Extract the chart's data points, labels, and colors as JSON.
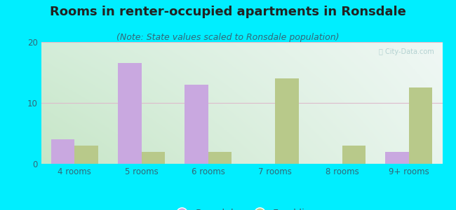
{
  "title": "Rooms in renter-occupied apartments in Ronsdale",
  "subtitle": "(Note: State values scaled to Ronsdale population)",
  "categories": [
    "4 rooms",
    "5 rooms",
    "6 rooms",
    "7 rooms",
    "8 rooms",
    "9+ rooms"
  ],
  "ronsdale_values": [
    4.0,
    16.5,
    13.0,
    0,
    0,
    2.0
  ],
  "franklin_values": [
    3.0,
    2.0,
    2.0,
    14.0,
    3.0,
    12.5
  ],
  "ronsdale_color": "#c9a8e0",
  "franklin_color": "#b8c98a",
  "bar_width": 0.35,
  "ylim": [
    0,
    20
  ],
  "yticks": [
    0,
    10,
    20
  ],
  "bg_outer": "#00eeff",
  "grid_color": "#ddbbcc",
  "title_fontsize": 13,
  "subtitle_fontsize": 9,
  "tick_fontsize": 8.5,
  "legend_fontsize": 10,
  "tick_color": "#336677",
  "title_color": "#222222",
  "subtitle_color": "#336677"
}
